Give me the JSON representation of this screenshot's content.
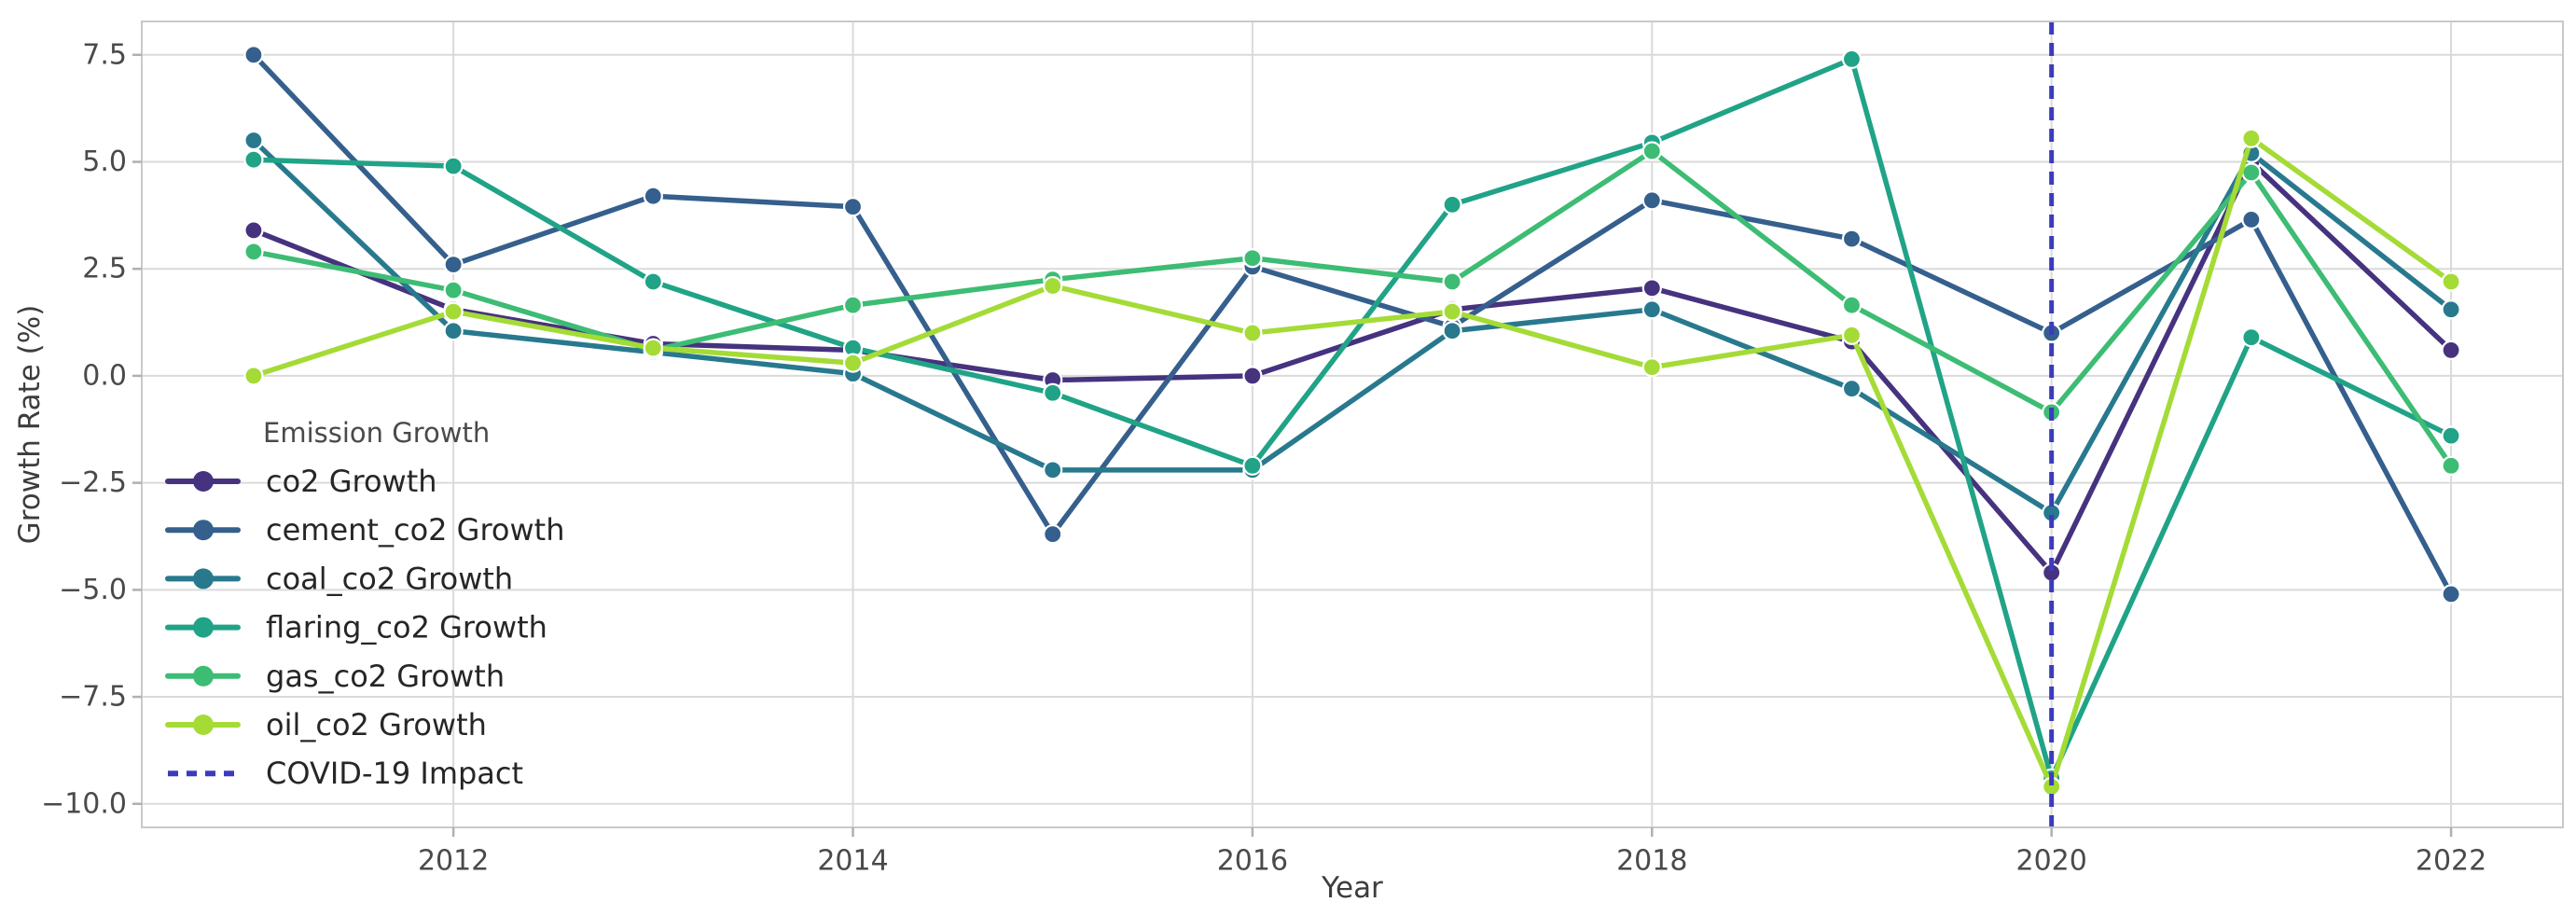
{
  "chart_data": {
    "type": "line",
    "x": [
      2011,
      2012,
      2013,
      2014,
      2015,
      2016,
      2017,
      2018,
      2019,
      2020,
      2021,
      2022
    ],
    "series": [
      {
        "name": "co2 Growth",
        "color": "#46327e",
        "marker": "circle",
        "values": [
          3.4,
          1.55,
          0.75,
          0.6,
          -0.1,
          0.0,
          1.55,
          2.05,
          0.8,
          -4.6,
          5.0,
          0.6
        ]
      },
      {
        "name": "cement_co2 Growth",
        "color": "#355f8d",
        "marker": "circle",
        "values": [
          7.5,
          2.6,
          4.2,
          3.95,
          -3.7,
          2.55,
          1.15,
          4.1,
          3.2,
          1.0,
          3.65,
          -5.1
        ]
      },
      {
        "name": "coal_co2 Growth",
        "color": "#28798e",
        "marker": "circle",
        "values": [
          5.5,
          1.05,
          0.55,
          0.05,
          -2.2,
          -2.2,
          1.05,
          1.55,
          -0.3,
          -3.2,
          5.2,
          1.55
        ]
      },
      {
        "name": "flaring_co2 Growth",
        "color": "#20a386",
        "marker": "circle",
        "values": [
          5.05,
          4.9,
          2.2,
          0.65,
          -0.4,
          -2.1,
          4.0,
          5.45,
          7.4,
          -9.4,
          0.9,
          -1.4
        ]
      },
      {
        "name": "gas_co2 Growth",
        "color": "#3dbc74",
        "marker": "circle",
        "values": [
          2.9,
          2.0,
          0.6,
          1.65,
          2.25,
          2.75,
          2.2,
          5.25,
          1.65,
          -0.85,
          4.75,
          -2.1
        ]
      },
      {
        "name": "oil_co2 Growth",
        "color": "#a4db36",
        "marker": "circle",
        "values": [
          0.0,
          1.5,
          0.65,
          0.3,
          2.1,
          1.0,
          1.5,
          0.2,
          0.95,
          -9.6,
          5.55,
          2.2
        ]
      }
    ],
    "annotations": [
      {
        "type": "vline",
        "x": 2020,
        "label": "COVID-19 Impact",
        "color": "#3b3bbd",
        "style": "dashed"
      }
    ],
    "title": "",
    "xlabel": "Year",
    "ylabel": "Growth Rate (%)",
    "xlim": [
      2010.44,
      2022.56
    ],
    "ylim": [
      -10.55,
      8.28
    ],
    "grid": true,
    "legend_position": "center-left",
    "legend_title": "Emission Growth",
    "xticks": [
      {
        "v": 2012,
        "label": "2012"
      },
      {
        "v": 2014,
        "label": "2014"
      },
      {
        "v": 2016,
        "label": "2016"
      },
      {
        "v": 2018,
        "label": "2018"
      },
      {
        "v": 2020,
        "label": "2020"
      },
      {
        "v": 2022,
        "label": "2022"
      }
    ],
    "yticks": [
      {
        "v": 7.5,
        "label": "7.5"
      },
      {
        "v": 5.0,
        "label": "5.0"
      },
      {
        "v": 2.5,
        "label": "2.5"
      },
      {
        "v": 0.0,
        "label": "0.0"
      },
      {
        "v": -2.5,
        "label": "−2.5"
      },
      {
        "v": -5.0,
        "label": "−5.0"
      },
      {
        "v": -7.5,
        "label": "−7.5"
      },
      {
        "v": -10.0,
        "label": "−10.0"
      }
    ]
  },
  "colors": {
    "background": "#ffffff",
    "grid": "#dadada",
    "spine": "#c9c9c9",
    "tick_mark": "#b0b0b0",
    "tick_text": "#4a4a4a",
    "axis_label": "#3d3d3d",
    "legend_title_text": "#4a4a4a",
    "legend_item_text": "#262626",
    "marker_edge": "#ffffff"
  }
}
